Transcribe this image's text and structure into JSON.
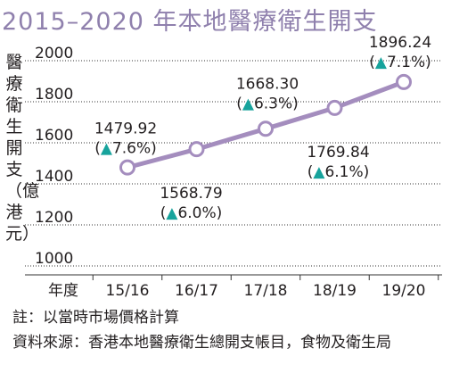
{
  "chart_data": {
    "type": "line",
    "title": "2015–2020 年本地醫療衛生開支",
    "ylabel": "醫療衛生開支（億港元）",
    "xlabel": "年度",
    "categories": [
      "15/16",
      "16/17",
      "17/18",
      "18/19",
      "19/20"
    ],
    "series": [
      {
        "values": [
          1479.92,
          1568.79,
          1668.3,
          1769.84,
          1896.24
        ],
        "value_labels": [
          "1479.92",
          "1568.79",
          "1668.30",
          "1769.84",
          "1896.24"
        ],
        "changes": [
          "(▲7.6%)",
          "(▲6.0%)",
          "(▲6.3%)",
          "(▲6.1%)",
          "(▲7.1%)"
        ]
      }
    ],
    "yticks": [
      1000,
      1200,
      1400,
      1600,
      1800,
      2000
    ],
    "ylim": [
      1000,
      2000
    ],
    "grid": true,
    "colors": {
      "line": "#a48dbe",
      "title": "#8f80ad",
      "arrow": "#17a39c",
      "text": "#231f20"
    }
  },
  "notes": {
    "note": "註：以當時市場價格計算",
    "source": "資料來源：香港本地醫療衛生總開支帳目，食物及衛生局"
  }
}
